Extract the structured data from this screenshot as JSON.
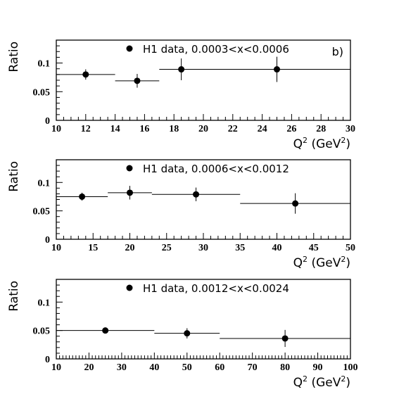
{
  "chart_data": [
    {
      "type": "scatter",
      "panel_label": "b)",
      "legend": "H1 data, 0.0003<x<0.0006",
      "xlabel": "Q",
      "xlabel_units": " (GeV",
      "xlabel_close": ")",
      "xlabel_sup": "2",
      "ylabel": "Ratio",
      "xlim": [
        10,
        30
      ],
      "ylim": [
        0,
        0.14
      ],
      "xticks": [
        10,
        12,
        14,
        16,
        18,
        20,
        22,
        24,
        26,
        28,
        30
      ],
      "yticks": [
        0,
        0.05,
        0.1
      ],
      "ytick_labels": [
        "0",
        "0.05",
        "0.1"
      ],
      "points": [
        {
          "x": 12,
          "y": 0.08,
          "yerr": 0.009,
          "xlo": 10,
          "xhi": 14
        },
        {
          "x": 15.5,
          "y": 0.069,
          "yerr": 0.012,
          "xlo": 14,
          "xhi": 17
        },
        {
          "x": 18.5,
          "y": 0.089,
          "yerr": 0.019,
          "xlo": 17,
          "xhi": 20
        },
        {
          "x": 25,
          "y": 0.089,
          "yerr": 0.022,
          "xlo": 20,
          "xhi": 30
        }
      ]
    },
    {
      "type": "scatter",
      "panel_label": "",
      "legend": "H1 data, 0.0006<x<0.0012",
      "xlabel": "Q",
      "xlabel_units": " (GeV",
      "xlabel_close": ")",
      "xlabel_sup": "2",
      "ylabel": "Ratio",
      "xlim": [
        10,
        50
      ],
      "ylim": [
        0,
        0.14
      ],
      "xticks": [
        10,
        15,
        20,
        25,
        30,
        35,
        40,
        45,
        50
      ],
      "yticks": [
        0,
        0.05,
        0.1
      ],
      "ytick_labels": [
        "0",
        "0.05",
        "0.1"
      ],
      "points": [
        {
          "x": 13.5,
          "y": 0.075,
          "yerr": 0.007,
          "xlo": 10,
          "xhi": 17
        },
        {
          "x": 20,
          "y": 0.082,
          "yerr": 0.012,
          "xlo": 17,
          "xhi": 23
        },
        {
          "x": 29,
          "y": 0.079,
          "yerr": 0.012,
          "xlo": 23,
          "xhi": 35
        },
        {
          "x": 42.5,
          "y": 0.063,
          "yerr": 0.018,
          "xlo": 35,
          "xhi": 50
        }
      ]
    },
    {
      "type": "scatter",
      "panel_label": "",
      "legend": "H1 data, 0.0012<x<0.0024",
      "xlabel": "Q",
      "xlabel_units": " (GeV",
      "xlabel_close": ")",
      "xlabel_sup": "2",
      "ylabel": "Ratio",
      "xlim": [
        10,
        100
      ],
      "ylim": [
        0,
        0.14
      ],
      "xticks": [
        10,
        20,
        30,
        40,
        50,
        60,
        70,
        80,
        90,
        100
      ],
      "yticks": [
        0,
        0.05,
        0.1
      ],
      "ytick_labels": [
        "0",
        "0.05",
        "0.1"
      ],
      "points": [
        {
          "x": 25,
          "y": 0.05,
          "yerr": 0.003,
          "xlo": 10,
          "xhi": 40
        },
        {
          "x": 50,
          "y": 0.045,
          "yerr": 0.009,
          "xlo": 40,
          "xhi": 60
        },
        {
          "x": 80,
          "y": 0.036,
          "yerr": 0.015,
          "xlo": 60,
          "xhi": 100
        }
      ]
    }
  ]
}
